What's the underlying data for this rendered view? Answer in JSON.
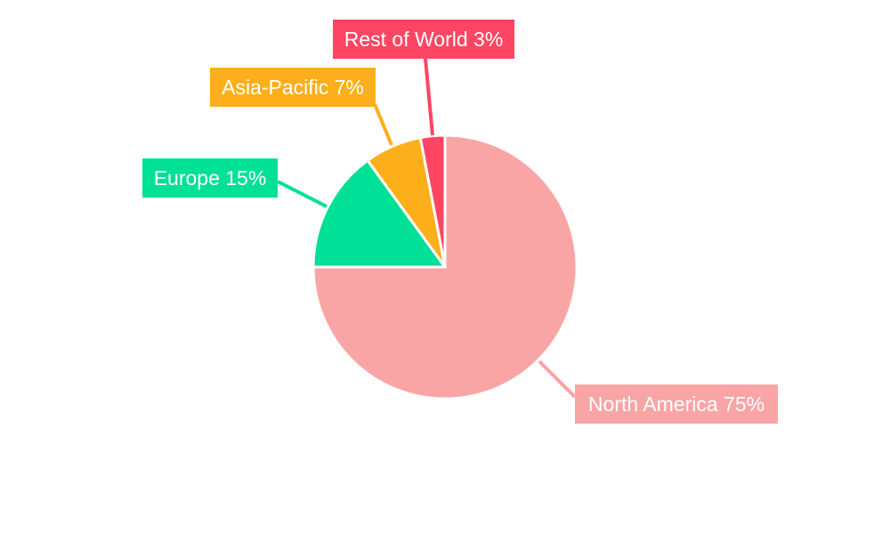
{
  "chart_data": {
    "type": "pie",
    "title": "",
    "start_angle": "12 o'clock",
    "direction": "clockwise",
    "slices": [
      {
        "label": "North America",
        "value": 75,
        "text": "North America 75%",
        "color": "#F9A5A5"
      },
      {
        "label": "Europe",
        "value": 15,
        "text": "Europe 15%",
        "color": "#00E096"
      },
      {
        "label": "Asia-Pacific",
        "value": 7,
        "text": "Asia-Pacific 7%",
        "color": "#FDAF1B"
      },
      {
        "label": "Rest of World",
        "value": 3,
        "text": "Rest of World 3%",
        "color": "#FF4563"
      }
    ]
  }
}
